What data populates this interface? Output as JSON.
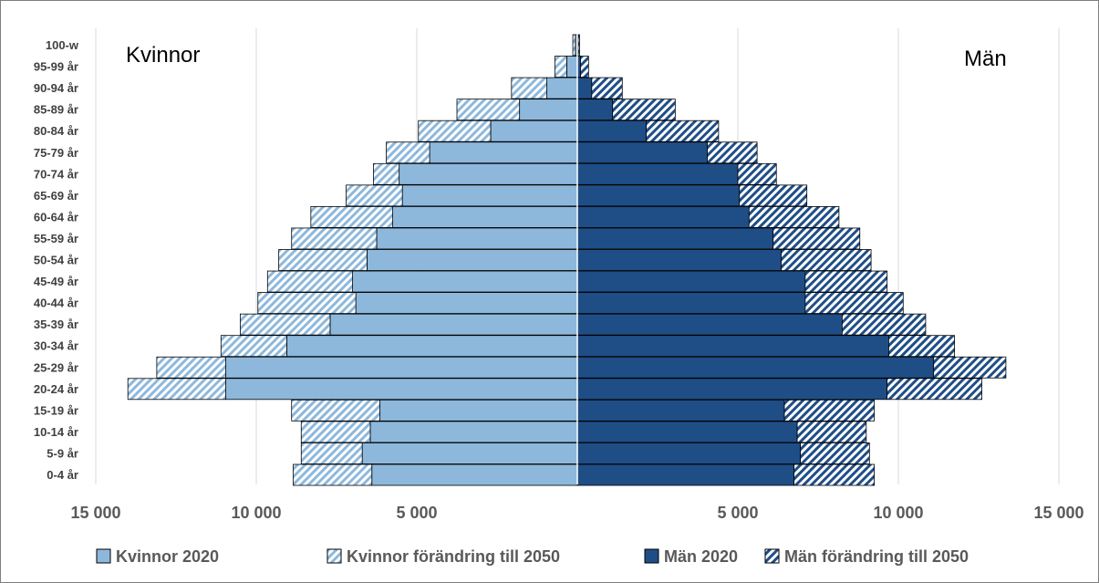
{
  "chart_data": {
    "type": "bar",
    "orientation": "horizontal",
    "layout": "population-pyramid",
    "labels": {
      "left": "Kvinnor",
      "right": "Män"
    },
    "categories": [
      "0-4 år",
      "5-9 år",
      "10-14 år",
      "15-19 år",
      "20-24 år",
      "25-29 år",
      "30-34 år",
      "35-39 år",
      "40-44 år",
      "45-49 år",
      "50-54 år",
      "55-59 år",
      "60-64 år",
      "65-69 år",
      "70-74 år",
      "75-79 år",
      "80-84 år",
      "85-89 år",
      "90-94 år",
      "95-99 år",
      "100-w"
    ],
    "x_ticks": [
      {
        "value": -15000,
        "label": "15 000"
      },
      {
        "value": -10000,
        "label": "10 000"
      },
      {
        "value": -5000,
        "label": "5 000"
      },
      {
        "value": 5000,
        "label": "5 000"
      },
      {
        "value": 10000,
        "label": "10 000"
      },
      {
        "value": 15000,
        "label": "15 000"
      }
    ],
    "xlim": [
      -15000,
      15000
    ],
    "grid": "vertical",
    "legend_position": "bottom",
    "series": [
      {
        "name": "Kvinnor 2020",
        "color": "#8db8dc",
        "pattern": "solid",
        "side": "left",
        "values": [
          6400,
          6700,
          6450,
          6150,
          10950,
          10950,
          9050,
          7700,
          6900,
          7000,
          6550,
          6250,
          5750,
          5450,
          5550,
          4600,
          2700,
          1800,
          950,
          330,
          60
        ]
      },
      {
        "name": "Kvinnor förändring till 2050",
        "color": "#8db8dc",
        "pattern": "hatched",
        "side": "left",
        "values": [
          2450,
          1900,
          2150,
          2750,
          3050,
          2150,
          2050,
          2800,
          3050,
          2650,
          2750,
          2650,
          2550,
          1750,
          800,
          1350,
          2250,
          1950,
          1100,
          370,
          80
        ]
      },
      {
        "name": "Män 2020",
        "color": "#1f4e86",
        "pattern": "solid",
        "side": "right",
        "values": [
          6750,
          6950,
          6850,
          6450,
          9650,
          11100,
          9700,
          8250,
          7100,
          7100,
          6350,
          6100,
          5350,
          5050,
          5000,
          4050,
          2150,
          1100,
          450,
          100,
          30
        ]
      },
      {
        "name": "Män förändring till 2050",
        "color": "#1f4e86",
        "pattern": "hatched",
        "side": "right",
        "values": [
          2500,
          2150,
          2150,
          2800,
          2950,
          2250,
          2050,
          2600,
          3050,
          2550,
          2800,
          2700,
          2800,
          2100,
          1200,
          1550,
          2250,
          1950,
          950,
          250,
          40
        ]
      }
    ]
  }
}
